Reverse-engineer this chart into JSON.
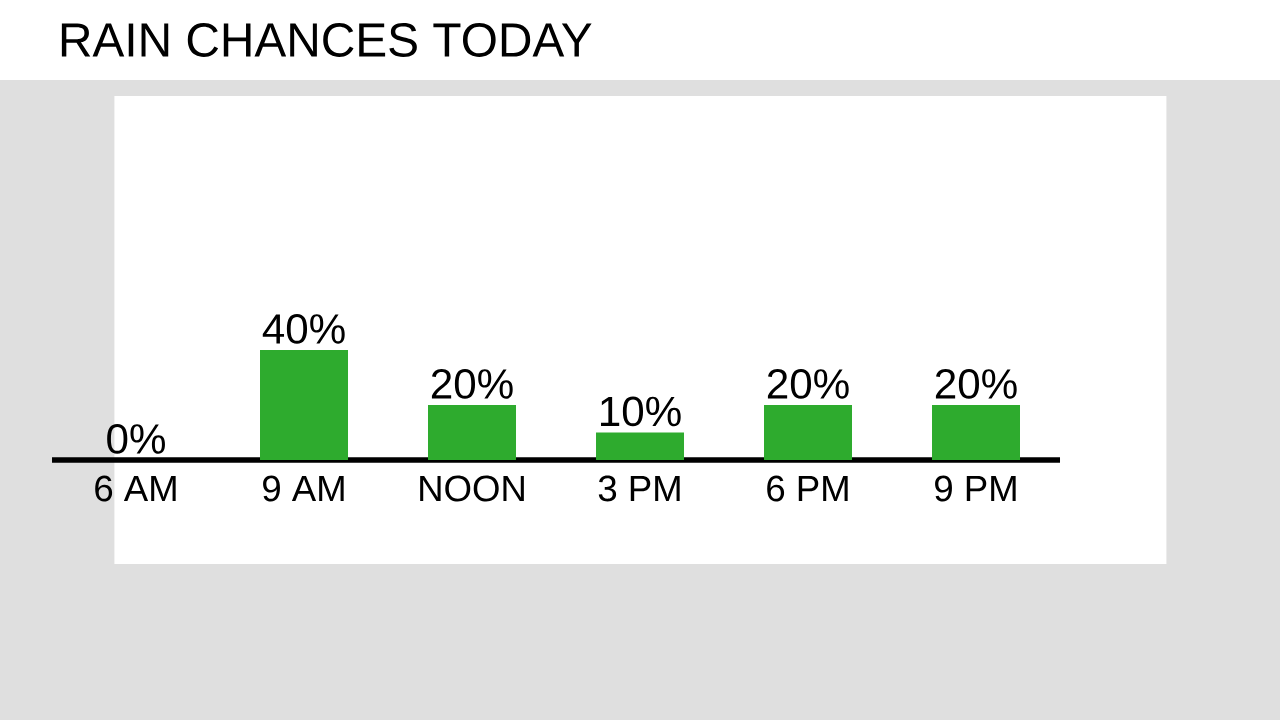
{
  "chart_data": {
    "type": "bar",
    "title": "RAIN CHANCES TODAY",
    "categories": [
      "6 AM",
      "9 AM",
      "NOON",
      "3 PM",
      "6 PM",
      "9 PM"
    ],
    "values": [
      0,
      40,
      20,
      10,
      20,
      20
    ],
    "value_labels": [
      "0%",
      "40%",
      "20%",
      "10%",
      "20%",
      "20%"
    ],
    "color": "#2eab2e"
  }
}
